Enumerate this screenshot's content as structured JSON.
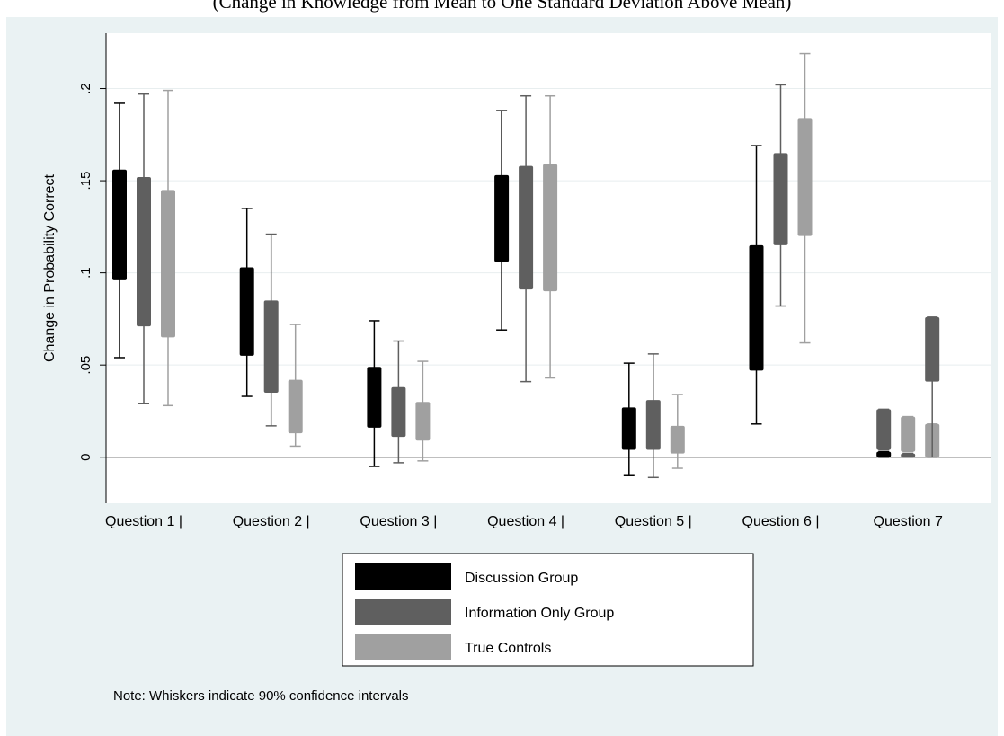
{
  "caption": "(Change in Knowledge from Mean to One Standard Deviation Above Mean)",
  "chart_data": {
    "type": "boxplot",
    "ylabel": "Change in Probability Correct",
    "ylim": [
      -0.025,
      0.23
    ],
    "yticks": [
      {
        "value": 0,
        "label": "0"
      },
      {
        "value": 0.05,
        "label": ".05"
      },
      {
        "value": 0.1,
        "label": ".1"
      },
      {
        "value": 0.15,
        "label": ".15"
      },
      {
        "value": 0.2,
        "label": ".2"
      }
    ],
    "grid": true,
    "legend_position": "bottom",
    "note": "Note: Whiskers indicate 90% confidence intervals",
    "categories": [
      "Question 1 |",
      "Question 2 |",
      "Question 3 |",
      "Question 4 |",
      "Question 5 |",
      "Question 6 |",
      "Question 7"
    ],
    "series": [
      {
        "name": "Discussion Group",
        "color": "#000000",
        "boxes": [
          {
            "low": 0.054,
            "q1": 0.096,
            "q3": 0.156,
            "high": 0.192
          },
          {
            "low": 0.033,
            "q1": 0.055,
            "q3": 0.103,
            "high": 0.135
          },
          {
            "low": -0.005,
            "q1": 0.016,
            "q3": 0.049,
            "high": 0.074
          },
          {
            "low": 0.069,
            "q1": 0.106,
            "q3": 0.153,
            "high": 0.188
          },
          {
            "low": -0.01,
            "q1": 0.004,
            "q3": 0.027,
            "high": 0.051
          },
          {
            "low": 0.018,
            "q1": 0.047,
            "q3": 0.115,
            "high": 0.169
          },
          {
            "low": 0.0,
            "q1": 0.0,
            "q3": 0.003,
            "high": 0.003
          }
        ]
      },
      {
        "name": "Information Only Group",
        "color": "#5f5f5f",
        "boxes": [
          {
            "low": 0.029,
            "q1": 0.071,
            "q3": 0.152,
            "high": 0.197
          },
          {
            "low": 0.017,
            "q1": 0.035,
            "q3": 0.085,
            "high": 0.121
          },
          {
            "low": -0.003,
            "q1": 0.011,
            "q3": 0.038,
            "high": 0.063
          },
          {
            "low": 0.041,
            "q1": 0.091,
            "q3": 0.158,
            "high": 0.196
          },
          {
            "low": -0.011,
            "q1": 0.004,
            "q3": 0.031,
            "high": 0.056
          },
          {
            "low": 0.082,
            "q1": 0.115,
            "q3": 0.165,
            "high": 0.202
          },
          {
            "low": 0.0,
            "q1": 0.0,
            "q3": 0.002,
            "high": 0.002
          }
        ]
      },
      {
        "name": "True Controls",
        "color": "#a0a0a0",
        "boxes": [
          {
            "low": 0.028,
            "q1": 0.065,
            "q3": 0.145,
            "high": 0.199
          },
          {
            "low": 0.006,
            "q1": 0.013,
            "q3": 0.042,
            "high": 0.072
          },
          {
            "low": -0.002,
            "q1": 0.009,
            "q3": 0.03,
            "high": 0.052
          },
          {
            "low": 0.043,
            "q1": 0.09,
            "q3": 0.159,
            "high": 0.196
          },
          {
            "low": -0.006,
            "q1": 0.002,
            "q3": 0.017,
            "high": 0.034
          },
          {
            "low": 0.062,
            "q1": 0.12,
            "q3": 0.184,
            "high": 0.219
          },
          {
            "low": 0.0,
            "q1": 0.0,
            "q3": 0.018,
            "high": 0.018
          }
        ]
      }
    ],
    "extra_boxes": [
      {
        "category": "Question 7",
        "color": "#5f5f5f",
        "low": 0.0,
        "q1": 0.041,
        "q3": 0.076,
        "high": 0.076
      },
      {
        "category": "Question 7",
        "color": "#5f5f5f",
        "low": 0.004,
        "q1": 0.004,
        "q3": 0.026,
        "high": 0.026
      },
      {
        "category": "Question 7",
        "color": "#a0a0a0",
        "low": 0.003,
        "q1": 0.003,
        "q3": 0.022,
        "high": 0.022
      }
    ]
  }
}
